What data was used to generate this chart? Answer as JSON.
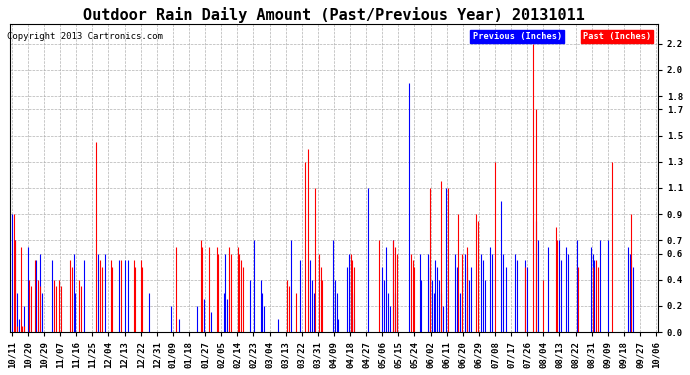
{
  "title": "Outdoor Rain Daily Amount (Past/Previous Year) 20131011",
  "copyright": "Copyright 2013 Cartronics.com",
  "legend_previous": "Previous (Inches)",
  "legend_past": "Past (Inches)",
  "legend_previous_color": "#0000FF",
  "legend_past_color": "#FF0000",
  "yticks": [
    0.0,
    0.2,
    0.4,
    0.6,
    0.7,
    0.9,
    1.1,
    1.3,
    1.5,
    1.7,
    1.8,
    2.0,
    2.2
  ],
  "ylim": [
    0.0,
    2.35
  ],
  "background_color": "#FFFFFF",
  "grid_color": "#AAAAAA",
  "x_labels": [
    "10/11",
    "10/20",
    "10/29",
    "11/07",
    "11/16",
    "11/25",
    "12/04",
    "12/13",
    "12/22",
    "12/31",
    "01/09",
    "01/18",
    "01/27",
    "02/05",
    "02/14",
    "02/23",
    "03/04",
    "03/13",
    "03/22",
    "03/31",
    "04/09",
    "04/18",
    "04/27",
    "05/06",
    "05/15",
    "05/24",
    "06/02",
    "06/11",
    "06/20",
    "06/29",
    "07/08",
    "07/17",
    "07/26",
    "08/04",
    "08/13",
    "08/22",
    "08/31",
    "09/09",
    "09/18",
    "09/27",
    "10/06"
  ],
  "num_points": 366,
  "title_fontsize": 11,
  "axis_fontsize": 6.5,
  "copyright_fontsize": 6.5,
  "prev_rain": [
    0.9,
    0.0,
    0.7,
    0.3,
    0.1,
    0.0,
    0.0,
    0.2,
    0.0,
    0.65,
    0.3,
    0.0,
    0.0,
    0.0,
    0.55,
    0.0,
    0.6,
    0.3,
    0.0,
    0.0,
    0.0,
    0.0,
    0.0,
    0.55,
    0.0,
    0.0,
    0.0,
    0.0,
    0.0,
    0.0,
    0.0,
    0.0,
    0.0,
    0.0,
    0.0,
    0.6,
    0.3,
    0.0,
    0.0,
    0.0,
    0.0,
    0.55,
    0.0,
    0.0,
    0.0,
    0.0,
    0.0,
    0.0,
    0.0,
    0.6,
    0.0,
    0.0,
    0.0,
    0.6,
    0.0,
    0.0,
    0.0,
    0.0,
    0.0,
    0.0,
    0.0,
    0.55,
    0.0,
    0.0,
    0.55,
    0.0,
    0.55,
    0.0,
    0.0,
    0.0,
    0.0,
    0.0,
    0.0,
    0.0,
    0.0,
    0.0,
    0.0,
    0.0,
    0.3,
    0.0,
    0.0,
    0.0,
    0.0,
    0.0,
    0.0,
    0.0,
    0.0,
    0.0,
    0.0,
    0.0,
    0.2,
    0.0,
    0.0,
    0.0,
    0.0,
    0.1,
    0.0,
    0.0,
    0.0,
    0.0,
    0.0,
    0.0,
    0.0,
    0.0,
    0.0,
    0.2,
    0.0,
    0.0,
    0.0,
    0.25,
    0.0,
    0.0,
    0.0,
    0.15,
    0.0,
    0.0,
    0.0,
    0.0,
    0.0,
    0.0,
    0.3,
    0.6,
    0.25,
    0.0,
    0.0,
    0.0,
    0.0,
    0.0,
    0.0,
    0.0,
    0.0,
    0.0,
    0.0,
    0.0,
    0.0,
    0.4,
    0.0,
    0.7,
    0.0,
    0.0,
    0.0,
    0.4,
    0.3,
    0.2,
    0.0,
    0.0,
    0.0,
    0.0,
    0.0,
    0.0,
    0.0,
    0.1,
    0.0,
    0.0,
    0.0,
    0.0,
    0.0,
    0.0,
    0.7,
    0.0,
    0.0,
    0.0,
    0.0,
    0.55,
    0.0,
    0.0,
    0.0,
    0.0,
    0.0,
    0.55,
    0.4,
    0.3,
    0.0,
    0.0,
    0.0,
    0.0,
    0.0,
    0.0,
    0.0,
    0.0,
    0.0,
    0.0,
    0.7,
    0.4,
    0.3,
    0.1,
    0.0,
    0.0,
    0.0,
    0.0,
    0.5,
    0.6,
    0.4,
    0.3,
    0.1,
    0.0,
    0.0,
    0.0,
    0.0,
    0.0,
    0.0,
    0.0,
    1.1,
    0.0,
    0.0,
    0.0,
    0.0,
    0.0,
    0.0,
    0.0,
    0.5,
    0.4,
    0.65,
    0.3,
    0.2,
    0.0,
    0.7,
    0.3,
    0.2,
    0.0,
    0.0,
    0.0,
    0.0,
    0.0,
    0.0,
    1.9,
    0.0,
    0.0,
    0.0,
    0.0,
    0.0,
    0.6,
    0.4,
    0.0,
    0.0,
    0.0,
    0.6,
    0.5,
    0.4,
    0.3,
    0.55,
    0.5,
    0.4,
    0.3,
    0.2,
    0.0,
    1.1,
    0.0,
    0.0,
    0.0,
    0.0,
    0.6,
    0.5,
    0.0,
    0.3,
    0.0,
    0.0,
    0.6,
    0.5,
    0.4,
    0.5,
    0.0,
    0.0,
    0.0,
    0.0,
    0.0,
    0.6,
    0.55,
    0.4,
    0.0,
    0.0,
    0.65,
    0.6,
    0.0,
    0.0,
    0.0,
    0.0,
    1.0,
    0.6,
    0.0,
    0.5,
    0.0,
    0.0,
    0.0,
    0.0,
    0.6,
    0.55,
    0.0,
    0.0,
    0.0,
    0.0,
    0.55,
    0.5,
    0.0,
    0.0,
    0.0,
    0.0,
    0.85,
    0.7,
    0.0,
    0.0,
    0.0,
    0.0,
    0.0,
    0.65,
    0.0,
    0.0,
    0.0,
    0.0,
    0.0,
    0.7,
    0.55,
    0.0,
    0.0,
    0.65,
    0.6,
    0.0,
    0.0,
    0.0,
    0.0,
    0.7,
    0.0,
    0.0,
    0.0,
    0.0,
    0.0,
    0.0,
    0.0,
    0.65,
    0.6,
    0.55,
    0.0,
    0.0,
    0.7,
    0.0,
    0.0,
    0.0,
    0.0,
    0.7,
    0.0,
    0.0,
    0.0,
    0.0,
    0.0,
    0.0,
    0.0,
    0.0,
    0.0,
    0.0,
    0.65,
    0.6,
    0.55,
    0.5,
    0.0,
    0.0,
    0.0,
    0.0,
    0.0,
    0.0,
    0.0,
    0.0,
    0.0,
    0.0,
    0.0,
    0.0,
    0.0
  ],
  "past_rain": [
    0.0,
    0.9,
    0.7,
    0.05,
    0.0,
    0.65,
    0.05,
    0.05,
    0.0,
    0.0,
    0.4,
    0.35,
    0.0,
    0.55,
    0.0,
    0.4,
    0.35,
    0.0,
    0.0,
    0.0,
    0.0,
    0.0,
    0.0,
    0.0,
    0.4,
    0.35,
    0.0,
    0.4,
    0.35,
    0.0,
    0.0,
    0.0,
    0.0,
    0.55,
    0.5,
    0.0,
    0.0,
    0.0,
    0.4,
    0.35,
    0.0,
    0.0,
    0.0,
    0.0,
    0.0,
    0.0,
    0.0,
    0.0,
    1.45,
    0.0,
    0.55,
    0.5,
    0.0,
    0.0,
    0.0,
    0.0,
    0.55,
    0.5,
    0.0,
    0.0,
    0.0,
    0.0,
    0.55,
    0.0,
    0.0,
    0.0,
    0.0,
    0.0,
    0.0,
    0.55,
    0.5,
    0.0,
    0.0,
    0.55,
    0.5,
    0.0,
    0.0,
    0.0,
    0.0,
    0.0,
    0.0,
    0.0,
    0.0,
    0.0,
    0.0,
    0.0,
    0.0,
    0.0,
    0.0,
    0.0,
    0.0,
    0.0,
    0.0,
    0.65,
    0.0,
    0.0,
    0.0,
    0.0,
    0.0,
    0.0,
    0.0,
    0.0,
    0.0,
    0.0,
    0.0,
    0.0,
    0.0,
    0.7,
    0.65,
    0.0,
    0.0,
    0.0,
    0.65,
    0.0,
    0.0,
    0.0,
    0.65,
    0.6,
    0.0,
    0.0,
    0.0,
    0.0,
    0.0,
    0.65,
    0.6,
    0.0,
    0.0,
    0.0,
    0.65,
    0.6,
    0.55,
    0.5,
    0.0,
    0.0,
    0.0,
    0.0,
    0.0,
    0.0,
    0.0,
    0.0,
    0.0,
    0.0,
    0.0,
    0.0,
    0.0,
    0.0,
    0.0,
    0.0,
    0.0,
    0.0,
    0.0,
    0.0,
    0.0,
    0.0,
    0.0,
    0.0,
    0.4,
    0.35,
    0.0,
    0.0,
    0.0,
    0.3,
    0.0,
    0.0,
    0.0,
    0.0,
    1.3,
    0.0,
    1.4,
    0.0,
    0.0,
    0.0,
    1.1,
    0.0,
    0.6,
    0.5,
    0.4,
    0.0,
    0.0,
    0.0,
    0.0,
    0.0,
    0.0,
    0.0,
    0.0,
    0.0,
    0.0,
    0.0,
    0.0,
    0.0,
    0.0,
    0.0,
    0.6,
    0.55,
    0.5,
    0.0,
    0.0,
    0.0,
    0.0,
    0.0,
    0.0,
    0.0,
    0.0,
    0.0,
    0.0,
    0.0,
    0.0,
    0.0,
    0.7,
    0.0,
    0.0,
    0.0,
    0.0,
    0.0,
    0.0,
    0.0,
    0.7,
    0.65,
    0.6,
    0.0,
    0.0,
    0.0,
    0.0,
    0.0,
    0.0,
    0.0,
    0.6,
    0.55,
    0.5,
    0.0,
    0.0,
    0.0,
    0.0,
    0.0,
    0.0,
    0.0,
    0.0,
    1.1,
    0.0,
    0.0,
    0.0,
    0.0,
    0.0,
    1.15,
    0.0,
    0.0,
    0.0,
    1.1,
    0.0,
    0.0,
    0.0,
    0.0,
    0.0,
    0.9,
    0.0,
    0.6,
    0.0,
    0.0,
    0.65,
    0.0,
    0.0,
    0.0,
    0.0,
    0.9,
    0.85,
    0.0,
    0.0,
    0.0,
    0.0,
    0.0,
    0.0,
    0.0,
    0.0,
    0.0,
    1.3,
    0.0,
    0.0,
    0.0,
    0.0,
    0.0,
    0.0,
    0.0,
    0.0,
    0.0,
    0.0,
    0.0,
    0.0,
    0.0,
    0.0,
    0.0,
    0.0,
    0.5,
    0.0,
    0.0,
    0.0,
    2.2,
    0.0,
    1.7,
    0.0,
    0.0,
    0.0,
    0.4,
    0.0,
    0.0,
    0.0,
    0.0,
    0.0,
    0.0,
    0.8,
    0.7,
    0.0,
    0.0,
    0.0,
    0.0,
    0.0,
    0.0,
    0.0,
    0.0,
    0.0,
    0.0,
    0.0,
    0.5,
    0.0,
    0.0,
    0.0,
    0.0,
    0.0,
    0.0,
    0.0,
    0.5,
    0.0,
    0.55,
    0.5,
    0.0,
    0.0,
    0.0,
    0.0,
    0.0,
    0.0,
    0.0,
    1.3,
    0.0,
    0.0,
    0.0,
    0.0,
    0.0,
    0.0,
    0.0,
    0.0,
    0.0,
    0.0,
    0.9,
    0.0,
    0.0,
    0.0,
    0.0,
    0.0,
    0.0,
    0.0,
    0.0,
    0.0,
    0.0,
    0.0,
    0.0,
    0.0,
    0.0
  ]
}
